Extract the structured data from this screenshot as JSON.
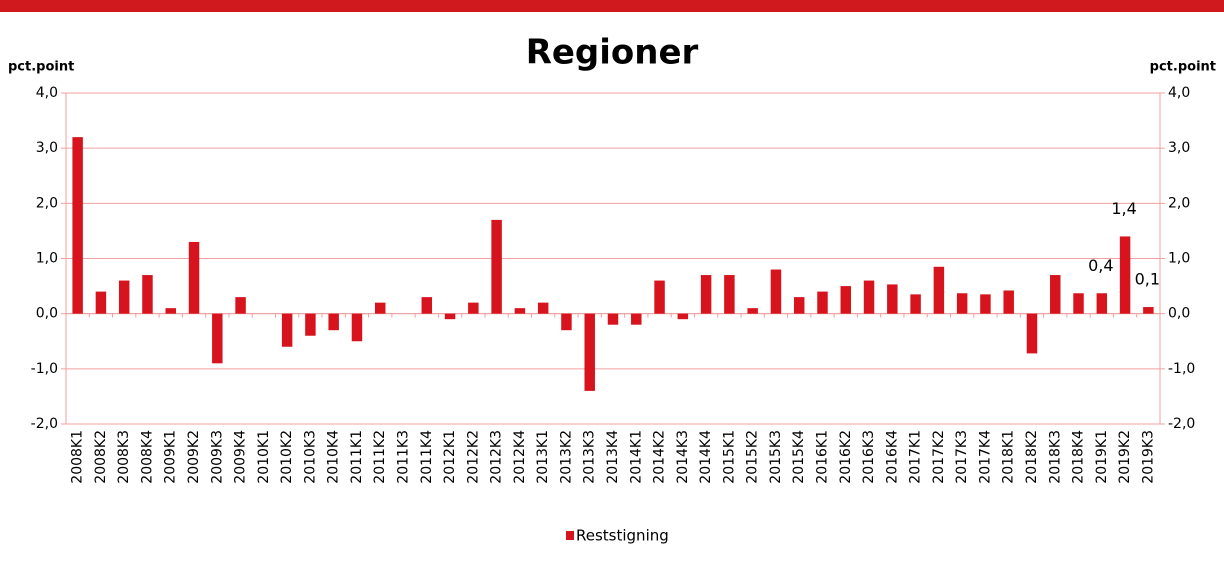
{
  "chart_data": {
    "type": "bar",
    "title": "Regioner",
    "y_label": "pct.point",
    "y2_label": "pct.point",
    "categories": [
      "2008K1",
      "2008K2",
      "2008K3",
      "2008K4",
      "2009K1",
      "2009K2",
      "2009K3",
      "2009K4",
      "2010K1",
      "2010K2",
      "2010K3",
      "2010K4",
      "2011K1",
      "2011K2",
      "2011K3",
      "2011K4",
      "2012K1",
      "2012K2",
      "2012K3",
      "2012K4",
      "2013K1",
      "2013K2",
      "2013K3",
      "2013K4",
      "2014K1",
      "2014K2",
      "2014K3",
      "2014K4",
      "2015K1",
      "2015K2",
      "2015K3",
      "2015K4",
      "2016K1",
      "2016K2",
      "2016K3",
      "2016K4",
      "2017K1",
      "2017K2",
      "2017K3",
      "2017K4",
      "2018K1",
      "2018K2",
      "2018K3",
      "2018K4",
      "2019K1",
      "2019K2",
      "2019K3"
    ],
    "series": [
      {
        "name": "Reststigning",
        "color": "#d7141e",
        "values": [
          3.2,
          0.4,
          0.6,
          0.7,
          0.1,
          1.3,
          -0.9,
          0.3,
          0.0,
          -0.6,
          -0.4,
          -0.3,
          -0.5,
          0.2,
          0.0,
          0.3,
          -0.1,
          0.2,
          1.7,
          0.1,
          0.2,
          -0.3,
          -1.4,
          -0.2,
          -0.2,
          0.6,
          -0.1,
          0.7,
          0.7,
          0.1,
          0.8,
          0.3,
          0.4,
          0.5,
          0.6,
          0.53,
          0.35,
          0.85,
          0.37,
          0.35,
          0.42,
          -0.72,
          0.7,
          0.37,
          0.37,
          1.4,
          0.12
        ],
        "value_labels": [
          null,
          null,
          null,
          null,
          null,
          null,
          null,
          null,
          null,
          null,
          null,
          null,
          null,
          null,
          null,
          null,
          null,
          null,
          null,
          null,
          null,
          null,
          null,
          null,
          null,
          null,
          null,
          null,
          null,
          null,
          null,
          null,
          null,
          null,
          null,
          null,
          null,
          null,
          null,
          null,
          null,
          null,
          null,
          null,
          "0,4",
          "1,4",
          "0,1"
        ]
      }
    ],
    "ylim": [
      -2,
      4
    ],
    "yticks": [
      {
        "value": -2,
        "label": "-2,0"
      },
      {
        "value": -1,
        "label": "-1,0"
      },
      {
        "value": 0,
        "label": "0,0"
      },
      {
        "value": 1,
        "label": "1,0"
      },
      {
        "value": 2,
        "label": "2,0"
      },
      {
        "value": 3,
        "label": "3,0"
      },
      {
        "value": 4,
        "label": "4,0"
      }
    ],
    "y2lim": [
      -2,
      4
    ],
    "y2ticks": [
      {
        "value": -2,
        "label": "-2,0"
      },
      {
        "value": -1,
        "label": "-1,0"
      },
      {
        "value": 0,
        "label": "0,0"
      },
      {
        "value": 1,
        "label": "1,0"
      },
      {
        "value": 2,
        "label": "2,0"
      },
      {
        "value": 3,
        "label": "3,0"
      },
      {
        "value": 4,
        "label": "4,0"
      }
    ],
    "grid": true,
    "legend": "bottom"
  }
}
